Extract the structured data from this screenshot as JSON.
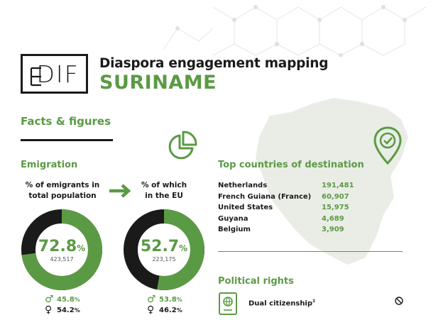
{
  "header": {
    "logo_text": "DIF",
    "title": "Diaspora engagement mapping",
    "country": "SURINAME"
  },
  "facts": {
    "heading": "Facts & figures"
  },
  "emigration": {
    "heading": "Emigration",
    "total": {
      "caption": "% of emigrants in total population",
      "percent": "72.8",
      "pct_sign": "%",
      "count": "423,517",
      "male": "45.8",
      "female": "54.2"
    },
    "eu": {
      "caption": "% of which in the EU",
      "percent": "52.7",
      "pct_sign": "%",
      "count": "223,175",
      "male": "53.8",
      "female": "46.2"
    },
    "pct_sign": "%"
  },
  "destinations": {
    "heading": "Top countries of destination",
    "rows": [
      {
        "country": "Netherlands",
        "value": "191,481"
      },
      {
        "country": "French Guiana (France)",
        "value": "60,907"
      },
      {
        "country": "United States",
        "value": "15,975"
      },
      {
        "country": "Guyana",
        "value": "4,689"
      },
      {
        "country": "Belgium",
        "value": "3,909"
      }
    ]
  },
  "political": {
    "heading": "Political rights",
    "dual_label": "Dual citizenship",
    "dual_note": "1"
  },
  "icons": [
    "network-decoration",
    "suriname-map",
    "pie-chart-icon",
    "location-check-icon",
    "arrow-right-icon",
    "male-icon",
    "female-icon",
    "passport-icon",
    "not-allowed-icon"
  ],
  "colors": {
    "accent": "#5b9a44",
    "dark": "#1a1a1a",
    "map": "#e9ede6"
  },
  "chart_data": [
    {
      "type": "pie",
      "title": "% of emigrants in total population",
      "values": [
        72.8,
        27.2
      ]
    },
    {
      "type": "pie",
      "title": "% of which in the EU",
      "values": [
        52.7,
        47.3
      ]
    }
  ]
}
